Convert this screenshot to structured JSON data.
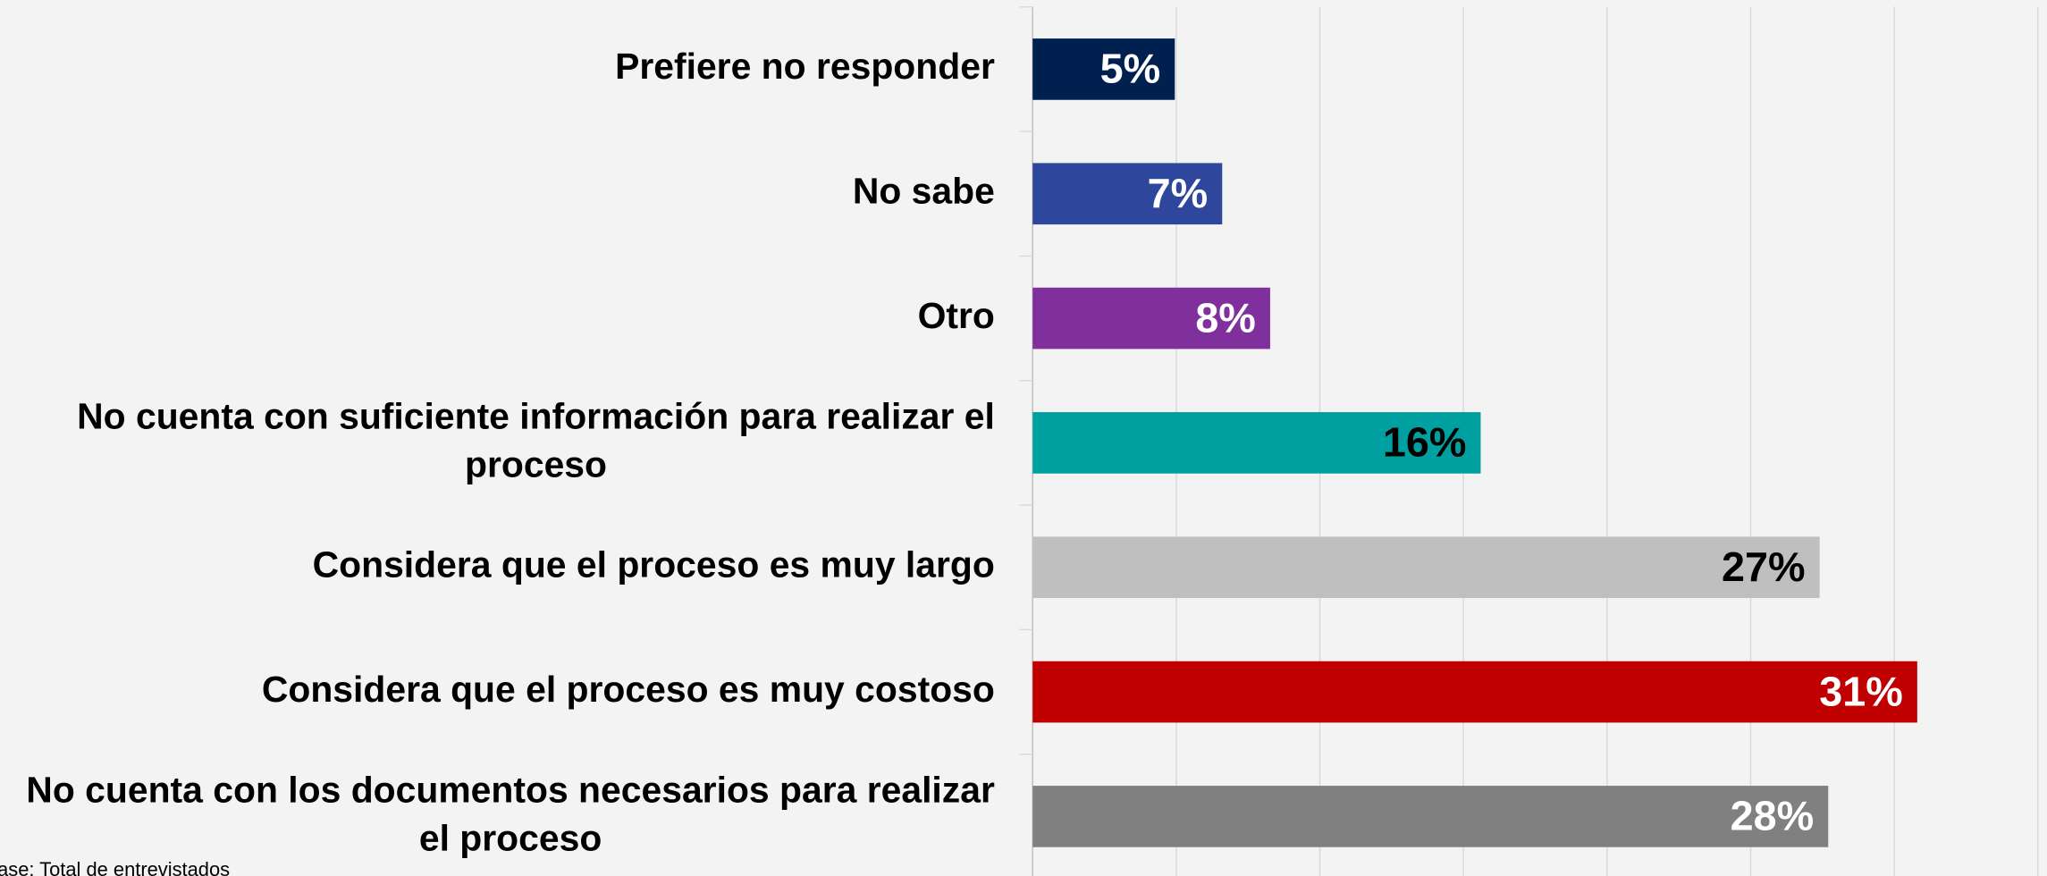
{
  "chart_data": {
    "type": "bar",
    "orientation": "horizontal",
    "categories": [
      "Prefiere no responder",
      "No sabe",
      "Otro",
      "No cuenta con suficiente información para realizar el proceso",
      "Considera que el proceso es muy largo",
      "Considera que el proceso es muy costoso",
      "No cuenta con los documentos necesarios para realizar el proceso"
    ],
    "values": [
      4.95,
      6.6,
      8.27,
      15.6,
      27.4,
      30.8,
      27.7
    ],
    "value_labels": [
      "5%",
      "7%",
      "8%",
      "16%",
      "27%",
      "31%",
      "28%"
    ],
    "colors": [
      "#002050",
      "#2e479c",
      "#80309c",
      "#00a0a0",
      "#bfbfbf",
      "#c00000",
      "#808080"
    ],
    "value_label_colors": [
      "#ffffff",
      "#ffffff",
      "#ffffff",
      "#000000",
      "#000000",
      "#ffffff",
      "#ffffff"
    ],
    "xlim": [
      0,
      35
    ],
    "xticks": [
      0,
      5,
      10,
      15,
      20,
      25,
      30,
      35
    ],
    "grid": true,
    "footnote": "Base: Total de entrevistados"
  }
}
